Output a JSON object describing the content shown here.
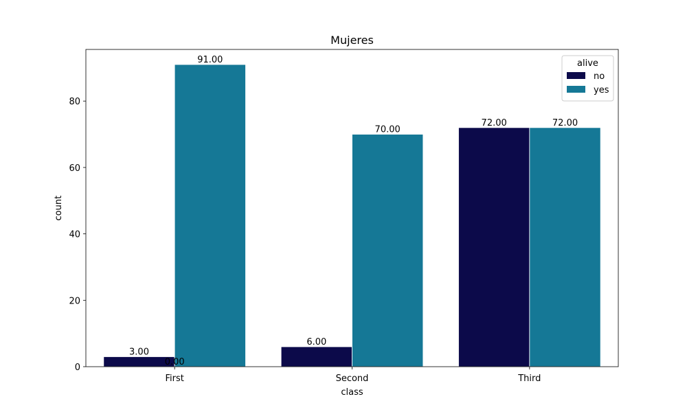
{
  "chart_data": {
    "type": "bar",
    "title": "Mujeres",
    "xlabel": "class",
    "ylabel": "count",
    "categories": [
      "First",
      "Second",
      "Third"
    ],
    "ylim": [
      0,
      95.55
    ],
    "yticks": [
      0,
      20,
      40,
      60,
      80
    ],
    "grid": false,
    "legend": {
      "title": "alive",
      "placement": "top-right"
    },
    "series": [
      {
        "name": "no",
        "color": "#0c0a4a",
        "values": [
          3,
          6,
          72
        ]
      },
      {
        "name": "yes",
        "color": "#157896",
        "values": [
          91,
          70,
          72
        ]
      }
    ],
    "data_labels": [
      [
        "3.00",
        "6.00",
        "72.00"
      ],
      [
        "91.00",
        "70.00",
        "72.00"
      ]
    ],
    "extra_labels": [
      {
        "text": "0.00",
        "category": 0,
        "value": 0
      }
    ]
  }
}
